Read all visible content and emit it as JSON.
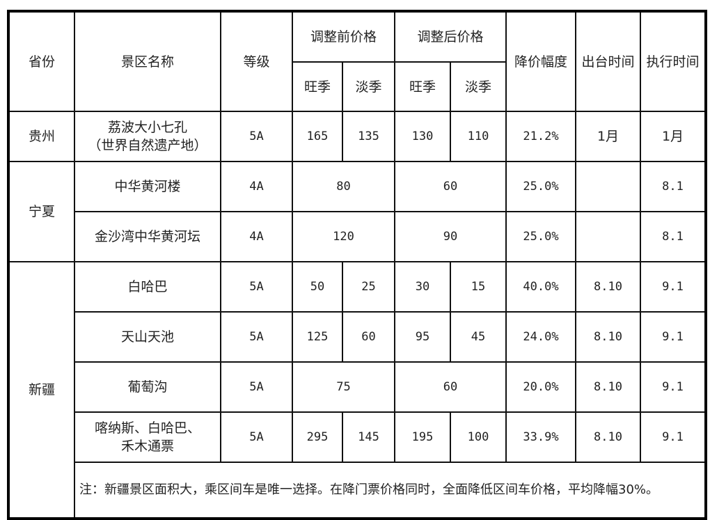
{
  "headers": {
    "province": "省份",
    "scenic_name": "景区名称",
    "grade": "等级",
    "before_price": "调整前价格",
    "after_price": "调整后价格",
    "peak": "旺季",
    "off": "淡季",
    "reduction": "降价幅度",
    "issue_time": "出台时间",
    "exec_time": "执行时间"
  },
  "provinces": [
    "贵州",
    "宁夏",
    "新疆"
  ],
  "rows": [
    {
      "name": "荔波大小七孔\n（世界自然遗产地）",
      "name_l1": "荔波大小七孔",
      "name_l2": "（世界自然遗产地）",
      "grade": "5A",
      "before_peak": "165",
      "before_off": "135",
      "after_peak": "130",
      "after_off": "110",
      "reduction": "21.2%",
      "issue": "1月",
      "exec": "1月"
    },
    {
      "name": "中华黄河楼",
      "grade": "4A",
      "before": "80",
      "after": "60",
      "reduction": "25.0%",
      "issue": "",
      "exec": "8.1"
    },
    {
      "name": "金沙湾中华黄河坛",
      "grade": "4A",
      "before": "120",
      "after": "90",
      "reduction": "25.0%",
      "issue": "",
      "exec": "8.1"
    },
    {
      "name": "白哈巴",
      "grade": "5A",
      "before_peak": "50",
      "before_off": "25",
      "after_peak": "30",
      "after_off": "15",
      "reduction": "40.0%",
      "issue": "8.10",
      "exec": "9.1"
    },
    {
      "name": "天山天池",
      "grade": "5A",
      "before_peak": "125",
      "before_off": "60",
      "after_peak": "95",
      "after_off": "45",
      "reduction": "24.0%",
      "issue": "8.10",
      "exec": "9.1"
    },
    {
      "name": "葡萄沟",
      "grade": "5A",
      "before": "75",
      "after": "60",
      "reduction": "20.0%",
      "issue": "8.10",
      "exec": "9.1"
    },
    {
      "name_l1": "喀纳斯、白哈巴、",
      "name_l2": "禾木通票",
      "grade": "5A",
      "before_peak": "295",
      "before_off": "145",
      "after_peak": "195",
      "after_off": "100",
      "reduction": "33.9%",
      "issue": "8.10",
      "exec": "9.1"
    }
  ],
  "note": "注：新疆景区面积大，乘区间车是唯一选择。在降门票价格同时，全面降低区间车价格，平均降幅30%。"
}
